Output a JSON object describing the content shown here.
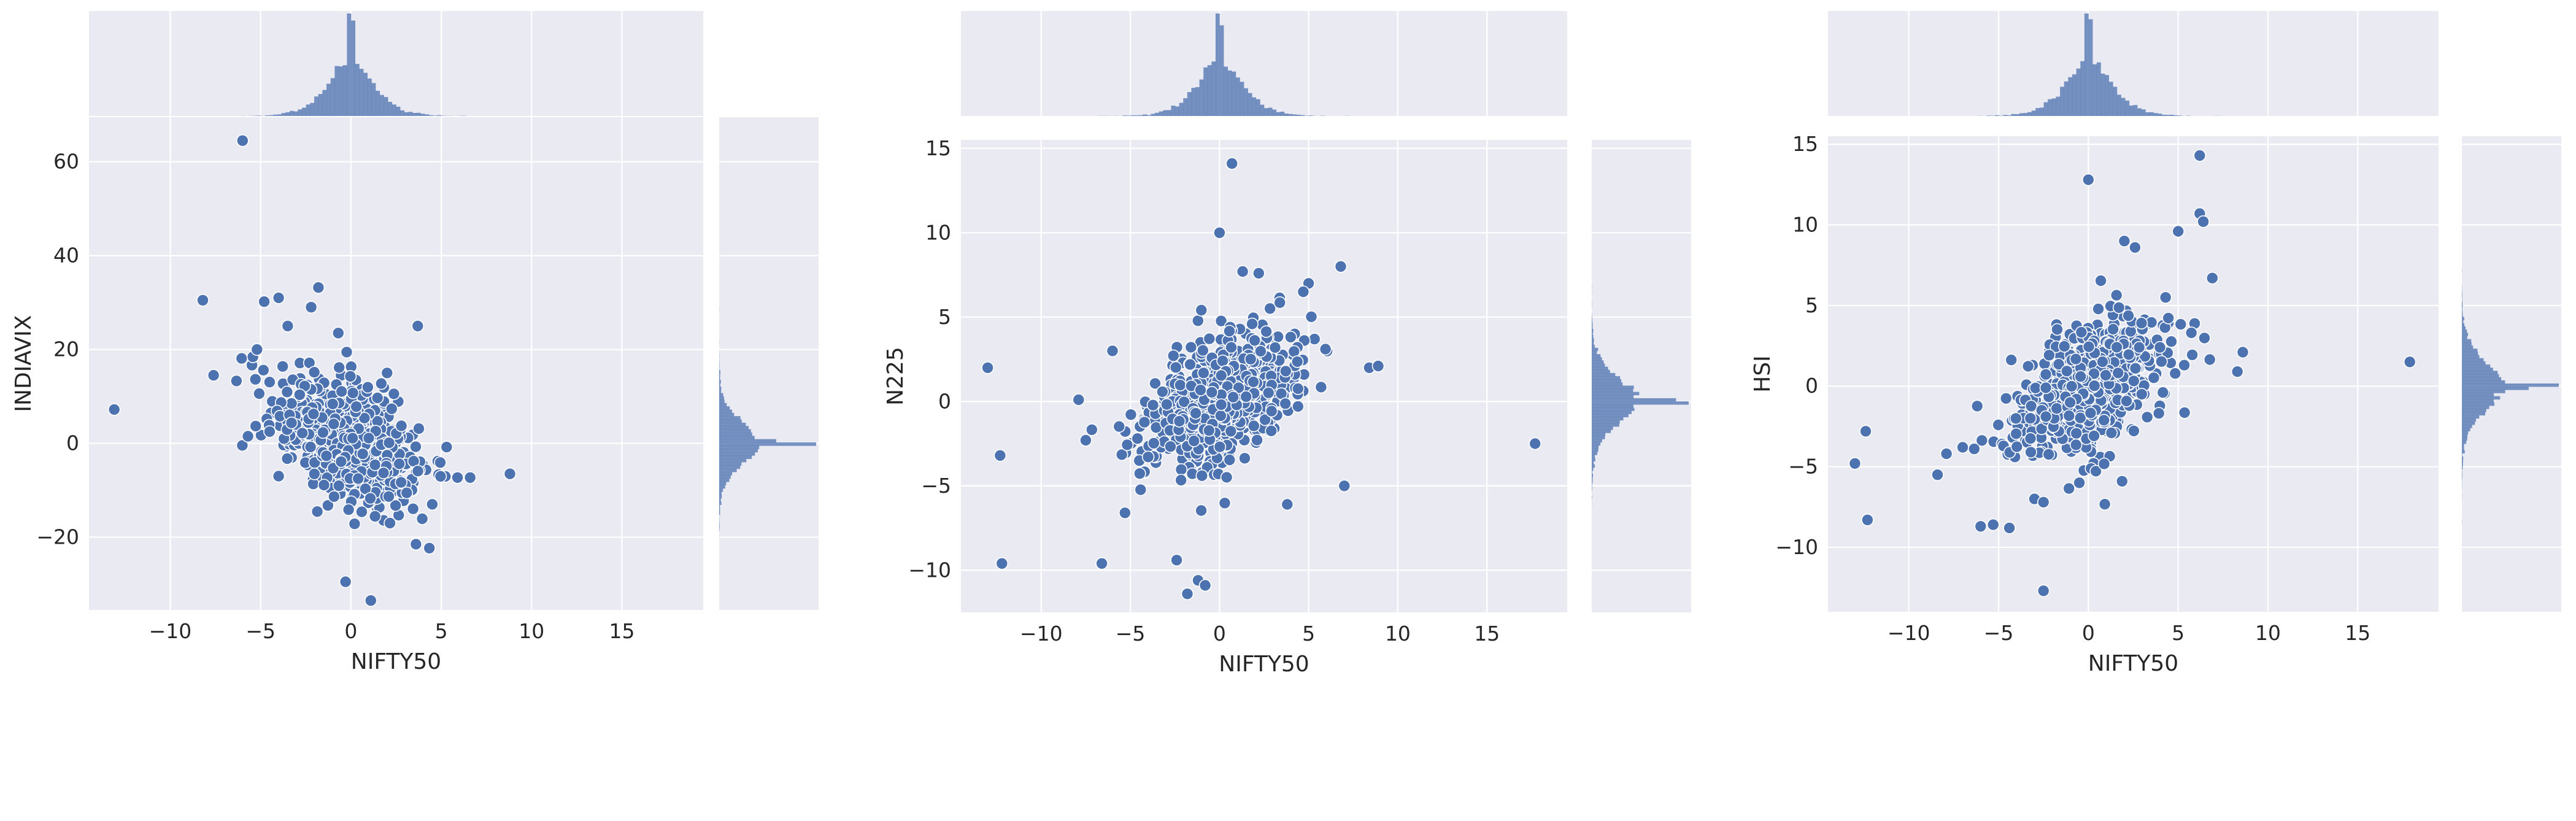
{
  "colors": {
    "panel_background": "#EAEAF2",
    "grid": "#FFFFFF",
    "marker": "#4C72B0",
    "marker_edge": "#FFFFFF",
    "hist": "#4C72B0"
  },
  "chart_data": [
    {
      "type": "scatter",
      "marginals": "histogram",
      "xlabel": "NIFTY50",
      "ylabel": "INDIAVIX",
      "xlim": [
        -14.5,
        19.5
      ],
      "ylim": [
        -35.5,
        69.5
      ],
      "xticks": [
        -10,
        -5,
        0,
        5,
        10,
        15
      ],
      "xtick_labels": [
        "−10",
        "−5",
        "0",
        "5",
        "10",
        "15"
      ],
      "yticks": [
        -20,
        0,
        20,
        40,
        60
      ],
      "ytick_labels": [
        "−20",
        "0",
        "20",
        "40",
        "60"
      ],
      "grid": true,
      "x_spread": 1.7,
      "y_spread": 5.6,
      "correlation": -0.45,
      "n_points": 1100,
      "outliers": [
        [
          -6.0,
          64.5
        ],
        [
          -13.1,
          7.2
        ],
        [
          -8.2,
          30.5
        ],
        [
          -7.6,
          14.5
        ],
        [
          -5.7,
          1.5
        ],
        [
          -4.8,
          30.2
        ],
        [
          -4.0,
          31.0
        ],
        [
          -1.8,
          33.2
        ],
        [
          -0.3,
          -29.5
        ],
        [
          1.1,
          -33.5
        ],
        [
          3.6,
          -21.5
        ],
        [
          3.7,
          25.0
        ],
        [
          5.3,
          -0.8
        ],
        [
          5.9,
          -7.3
        ],
        [
          6.6,
          -7.3
        ],
        [
          8.8,
          -6.5
        ],
        [
          -4.5,
          2.5
        ],
        [
          -4.0,
          -7.0
        ],
        [
          -2.2,
          29.0
        ],
        [
          -0.7,
          23.5
        ],
        [
          4.5,
          -13.0
        ],
        [
          2.0,
          15.0
        ],
        [
          -3.5,
          25.0
        ],
        [
          -5.2,
          20.0
        ]
      ]
    },
    {
      "type": "scatter",
      "marginals": "histogram",
      "xlabel": "NIFTY50",
      "ylabel": "N225",
      "xlim": [
        -14.5,
        19.5
      ],
      "ylim": [
        -12.5,
        15.5
      ],
      "xticks": [
        -10,
        -5,
        0,
        5,
        10,
        15
      ],
      "xtick_labels": [
        "−10",
        "−5",
        "0",
        "5",
        "10",
        "15"
      ],
      "yticks": [
        -10,
        -5,
        0,
        5,
        10,
        15
      ],
      "ytick_labels": [
        "−10",
        "−5",
        "0",
        "5",
        "10",
        "15"
      ],
      "grid": true,
      "x_spread": 1.7,
      "y_spread": 1.7,
      "correlation": 0.45,
      "n_points": 1100,
      "outliers": [
        [
          -13.0,
          2.0
        ],
        [
          -12.3,
          -3.2
        ],
        [
          -12.2,
          -9.6
        ],
        [
          0.7,
          14.1
        ],
        [
          0.0,
          10.0
        ],
        [
          17.7,
          -2.5
        ],
        [
          -6.6,
          -9.6
        ],
        [
          -2.4,
          -9.4
        ],
        [
          -1.8,
          -11.4
        ],
        [
          -1.2,
          -10.6
        ],
        [
          6.8,
          8.0
        ],
        [
          8.4,
          2.0
        ],
        [
          8.9,
          2.1
        ],
        [
          7.0,
          -5.0
        ],
        [
          5.0,
          7.0
        ],
        [
          -7.5,
          -2.3
        ],
        [
          -5.3,
          -6.6
        ],
        [
          3.8,
          -6.1
        ],
        [
          -0.8,
          -10.9
        ],
        [
          4.7,
          6.5
        ],
        [
          2.2,
          7.6
        ],
        [
          1.3,
          7.7
        ],
        [
          -7.9,
          0.1
        ],
        [
          -6.0,
          3.0
        ]
      ]
    },
    {
      "type": "scatter",
      "marginals": "histogram",
      "xlabel": "NIFTY50",
      "ylabel": "HSI",
      "xlim": [
        -14.5,
        19.5
      ],
      "ylim": [
        -14.0,
        15.5
      ],
      "xticks": [
        -10,
        -5,
        0,
        5,
        10,
        15
      ],
      "xtick_labels": [
        "−10",
        "−5",
        "0",
        "5",
        "10",
        "15"
      ],
      "yticks": [
        -10,
        -5,
        0,
        5,
        10,
        15
      ],
      "ytick_labels": [
        "−10",
        "−5",
        "0",
        "5",
        "10",
        "15"
      ],
      "grid": true,
      "x_spread": 1.7,
      "y_spread": 1.9,
      "correlation": 0.55,
      "n_points": 1100,
      "outliers": [
        [
          -13.0,
          -4.8
        ],
        [
          -12.3,
          -8.3
        ],
        [
          -12.4,
          -2.8
        ],
        [
          -2.5,
          -12.7
        ],
        [
          0.0,
          12.8
        ],
        [
          6.2,
          14.3
        ],
        [
          6.2,
          10.7
        ],
        [
          6.4,
          10.2
        ],
        [
          5.0,
          9.6
        ],
        [
          17.9,
          1.5
        ],
        [
          8.6,
          2.1
        ],
        [
          8.3,
          0.9
        ],
        [
          6.9,
          6.7
        ],
        [
          2.0,
          9.0
        ],
        [
          2.6,
          8.6
        ],
        [
          -5.3,
          -8.6
        ],
        [
          -4.4,
          -8.8
        ],
        [
          -7.0,
          -3.8
        ],
        [
          -7.9,
          -4.2
        ],
        [
          -3.0,
          -7.0
        ],
        [
          -2.5,
          -7.2
        ],
        [
          4.3,
          5.5
        ],
        [
          -8.4,
          -5.5
        ],
        [
          -6.0,
          -8.7
        ]
      ]
    }
  ]
}
